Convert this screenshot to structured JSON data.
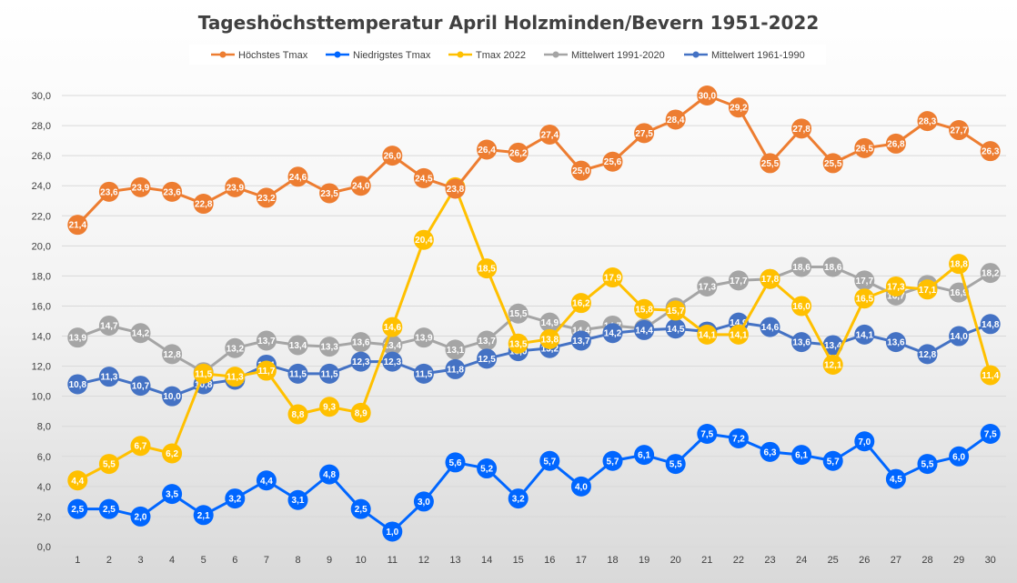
{
  "chart_data": {
    "type": "line",
    "title": "Tageshöchsttemperatur April Holzminden/Bevern 1951-2022",
    "xlabel": "",
    "ylabel": "",
    "ylim": [
      0,
      30
    ],
    "y_ticks": [
      "0,0",
      "2,0",
      "4,0",
      "6,0",
      "8,0",
      "10,0",
      "12,0",
      "14,0",
      "16,0",
      "18,0",
      "20,0",
      "22,0",
      "24,0",
      "26,0",
      "28,0",
      "30,0"
    ],
    "x": [
      "1",
      "2",
      "3",
      "4",
      "5",
      "6",
      "7",
      "8",
      "9",
      "10",
      "11",
      "12",
      "13",
      "14",
      "15",
      "16",
      "17",
      "18",
      "19",
      "20",
      "21",
      "22",
      "23",
      "24",
      "25",
      "26",
      "27",
      "28",
      "29",
      "30"
    ],
    "grid": true,
    "legend_position": "top",
    "series": [
      {
        "name": "Mittelwert 1991-2020",
        "color": "#a5a5a5",
        "values": [
          13.9,
          14.7,
          14.2,
          12.8,
          11.6,
          13.2,
          13.7,
          13.4,
          13.3,
          13.6,
          13.4,
          13.9,
          13.1,
          13.7,
          15.5,
          14.9,
          14.4,
          14.7,
          14.5,
          15.9,
          17.3,
          17.7,
          17.8,
          18.6,
          18.6,
          17.7,
          16.7,
          17.4,
          16.9,
          18.2
        ],
        "labels": [
          "13,9",
          "14,7",
          "14,2",
          "12,8",
          "11,6",
          "13,2",
          "13,7",
          "13,4",
          "13,3",
          "13,6",
          "13,4",
          "13,9",
          "13,1",
          "13,7",
          "15,5",
          "14,9",
          "14,4",
          "14,7",
          "14,5",
          "15,9",
          "17,3",
          "17,7",
          "17,8",
          "18,6",
          "18,6",
          "17,7",
          "16,7",
          "17,4",
          "16,9",
          "18,2"
        ]
      },
      {
        "name": "Mittelwert 1961-1990",
        "color": "#4472c4",
        "values": [
          10.8,
          11.3,
          10.7,
          10.0,
          10.8,
          11.1,
          12.1,
          11.5,
          11.5,
          12.3,
          12.3,
          11.5,
          11.8,
          12.5,
          13.0,
          13.2,
          13.7,
          14.2,
          14.4,
          14.5,
          14.3,
          14.9,
          14.6,
          13.6,
          13.4,
          14.1,
          13.6,
          12.8,
          14.0,
          14.8
        ],
        "labels": [
          "10,8",
          "11,3",
          "10,7",
          "10,0",
          "10,8",
          "11,1",
          "12,1",
          "11,5",
          "11,5",
          "12,3",
          "12,3",
          "11,5",
          "11,8",
          "12,5",
          "13,0",
          "13,2",
          "13,7",
          "14,2",
          "14,4",
          "14,5",
          "14,3",
          "14,9",
          "14,6",
          "13,6",
          "13,4",
          "14,1",
          "13,6",
          "12,8",
          "14,0",
          "14,8"
        ]
      },
      {
        "name": "Tmax 2022",
        "color": "#ffc000",
        "values": [
          4.4,
          5.5,
          6.7,
          6.2,
          11.5,
          11.3,
          11.7,
          8.8,
          9.3,
          8.9,
          14.6,
          20.4,
          23.9,
          18.5,
          13.5,
          13.8,
          16.2,
          17.9,
          15.8,
          15.7,
          14.1,
          14.1,
          17.8,
          16.0,
          12.1,
          16.5,
          17.3,
          17.1,
          18.8,
          11.4
        ],
        "labels": [
          "4,4",
          "5,5",
          "6,7",
          "6,2",
          "11,5",
          "11,3",
          "11,7",
          "8,8",
          "9,3",
          "8,9",
          "14,6",
          "20,4",
          "23,9",
          "18,5",
          "13,5",
          "13,8",
          "16,2",
          "17,9",
          "15,8",
          "15,7",
          "14,1",
          "14,1",
          "17,8",
          "16,0",
          "12,1",
          "16,5",
          "17,3",
          "17,1",
          "18,8",
          "11,4"
        ]
      },
      {
        "name": "Höchstes Tmax",
        "color": "#ed7d31",
        "values": [
          21.4,
          23.6,
          23.9,
          23.6,
          22.8,
          23.9,
          23.2,
          24.6,
          23.5,
          24.0,
          26.0,
          24.5,
          23.8,
          26.4,
          26.2,
          27.4,
          25.0,
          25.6,
          27.5,
          28.4,
          30.0,
          29.2,
          25.5,
          27.8,
          25.5,
          26.5,
          26.8,
          28.3,
          27.7,
          26.3
        ],
        "labels": [
          "21,4",
          "23,6",
          "23,9",
          "23,6",
          "22,8",
          "23,9",
          "23,2",
          "24,6",
          "23,5",
          "24,0",
          "26,0",
          "24,5",
          "23,8",
          "26,4",
          "26,2",
          "27,4",
          "25,0",
          "25,6",
          "27,5",
          "28,4",
          "30,0",
          "29,2",
          "25,5",
          "27,8",
          "25,5",
          "26,5",
          "26,8",
          "28,3",
          "27,7",
          "26,3"
        ]
      },
      {
        "name": "Niedrigstes Tmax",
        "color": "#0066ff",
        "values": [
          2.5,
          2.5,
          2.0,
          3.5,
          2.1,
          3.2,
          4.4,
          3.1,
          4.8,
          2.5,
          1.0,
          3.0,
          5.6,
          5.2,
          3.2,
          5.7,
          4.0,
          5.7,
          6.1,
          5.5,
          7.5,
          7.2,
          6.3,
          6.1,
          5.7,
          7.0,
          4.5,
          5.5,
          6.0,
          7.5
        ],
        "labels": [
          "2,5",
          "2,5",
          "2,0",
          "3,5",
          "2,1",
          "3,2",
          "4,4",
          "3,1",
          "4,8",
          "2,5",
          "1,0",
          "3,0",
          "5,6",
          "5,2",
          "3,2",
          "5,7",
          "4,0",
          "5,7",
          "6,1",
          "5,5",
          "7,5",
          "7,2",
          "6,3",
          "6,1",
          "5,7",
          "7,0",
          "4,5",
          "5,5",
          "6,0",
          "7,5"
        ]
      }
    ],
    "legend_order": [
      "Höchstes Tmax",
      "Niedrigstes Tmax",
      "Tmax 2022",
      "Mittelwert 1991-2020",
      "Mittelwert 1961-1990"
    ],
    "grid_color": "#d9d9d9"
  }
}
